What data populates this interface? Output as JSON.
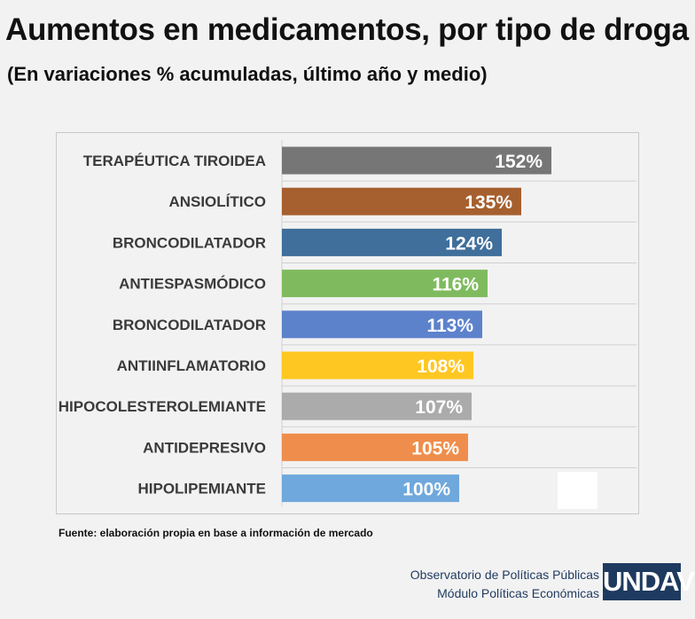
{
  "header": {
    "title": "Aumentos en medicamentos, por tipo de droga",
    "subtitle": "(En variaciones % acumuladas, último año y medio)"
  },
  "footer": {
    "source": "Fuente: elaboración propia en base a información de mercado",
    "credit_line1": "Observatorio de Políticas Públicas",
    "credit_line2": "Módulo Políticas Económicas",
    "logo_text": "UNDAV"
  },
  "chart_data": {
    "type": "bar",
    "orientation": "horizontal",
    "title": "Aumentos en medicamentos, por tipo de droga",
    "subtitle": "(En variaciones % acumuladas, último año y medio)",
    "categories": [
      "TERAPÉUTICA TIROIDEA",
      "ANSIOLÍTICO",
      "BRONCODILATADOR",
      "ANTIESPASMÓDICO",
      "BRONCODILATADOR",
      "ANTIINFLAMATORIO",
      "HIPOCOLESTEROLEMIANTE",
      "ANTIDEPRESIVO",
      "HIPOLIPEMIANTE"
    ],
    "values": [
      152,
      135,
      124,
      116,
      113,
      108,
      107,
      105,
      100
    ],
    "labels": [
      "152%",
      "135%",
      "124%",
      "116%",
      "113%",
      "108%",
      "107%",
      "105%",
      "100%"
    ],
    "colors": [
      "#767676",
      "#a65f2e",
      "#3f6f9a",
      "#7fbb5e",
      "#5d82cc",
      "#ffc721",
      "#ababab",
      "#ef8e4c",
      "#6fa8dc"
    ],
    "xlim": [
      0,
      200
    ],
    "grid": "horizontal",
    "legend": "none"
  }
}
